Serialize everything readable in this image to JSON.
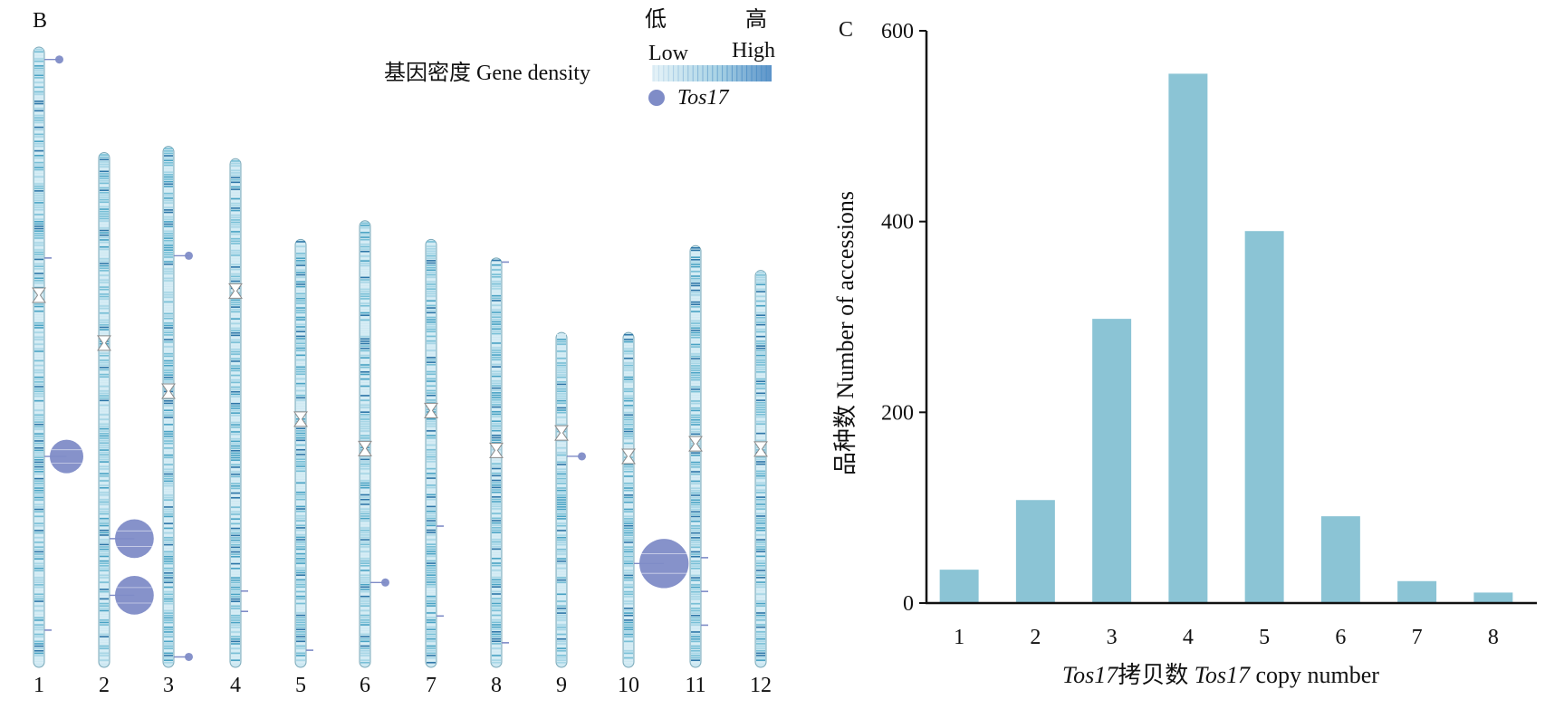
{
  "panel_b": {
    "letter": "B",
    "legend": {
      "density_label": "基因密度 Gene density",
      "low_cn": "低",
      "high_cn": "高",
      "low_en": "Low",
      "high_en": "High",
      "marker_label": "Tos17",
      "marker_color": "#7f8cc7"
    },
    "chromosomes": [
      {
        "label": "1",
        "length_rel": 1.0,
        "centromere_rel": 0.4,
        "markers": [
          {
            "pos_rel": 0.02,
            "copies": 1
          },
          {
            "pos_rel": 0.34,
            "copies": 0
          },
          {
            "pos_rel": 0.66,
            "copies": 5
          },
          {
            "pos_rel": 0.94,
            "copies": 0
          }
        ]
      },
      {
        "label": "2",
        "length_rel": 0.83,
        "centromere_rel": 0.37,
        "markers": [
          {
            "pos_rel": 0.75,
            "copies": 6
          },
          {
            "pos_rel": 0.86,
            "copies": 6
          }
        ]
      },
      {
        "label": "3",
        "length_rel": 0.84,
        "centromere_rel": 0.47,
        "markers": [
          {
            "pos_rel": 0.21,
            "copies": 1
          },
          {
            "pos_rel": 0.98,
            "copies": 1
          }
        ]
      },
      {
        "label": "4",
        "length_rel": 0.82,
        "centromere_rel": 0.26,
        "markers": [
          {
            "pos_rel": 0.85,
            "copies": 0
          },
          {
            "pos_rel": 0.89,
            "copies": 0
          }
        ]
      },
      {
        "label": "5",
        "length_rel": 0.69,
        "centromere_rel": 0.42,
        "markers": [
          {
            "pos_rel": 0.96,
            "copies": 0
          }
        ]
      },
      {
        "label": "6",
        "length_rel": 0.72,
        "centromere_rel": 0.51,
        "markers": [
          {
            "pos_rel": 0.81,
            "copies": 1
          }
        ]
      },
      {
        "label": "7",
        "length_rel": 0.69,
        "centromere_rel": 0.4,
        "markers": [
          {
            "pos_rel": 0.67,
            "copies": 0
          },
          {
            "pos_rel": 0.88,
            "copies": 0
          }
        ]
      },
      {
        "label": "8",
        "length_rel": 0.66,
        "centromere_rel": 0.47,
        "markers": [
          {
            "pos_rel": 0.01,
            "copies": 0
          },
          {
            "pos_rel": 0.94,
            "copies": 0
          }
        ]
      },
      {
        "label": "9",
        "length_rel": 0.54,
        "centromere_rel": 0.3,
        "markers": [
          {
            "pos_rel": 0.37,
            "copies": 1
          }
        ]
      },
      {
        "label": "10",
        "length_rel": 0.54,
        "centromere_rel": 0.37,
        "markers": [
          {
            "pos_rel": 0.69,
            "copies": 8
          }
        ]
      },
      {
        "label": "11",
        "length_rel": 0.68,
        "centromere_rel": 0.47,
        "markers": [
          {
            "pos_rel": 0.74,
            "copies": 0
          },
          {
            "pos_rel": 0.82,
            "copies": 0
          },
          {
            "pos_rel": 0.9,
            "copies": 0
          }
        ]
      },
      {
        "label": "12",
        "length_rel": 0.64,
        "centromere_rel": 0.45,
        "markers": []
      }
    ]
  },
  "panel_c": {
    "letter": "C",
    "colors": {
      "bar": "#8bc4d5",
      "axis": "#111111"
    }
  },
  "chart_data": {
    "type": "bar",
    "title": "",
    "xlabel_italic_part": "Tos17",
    "xlabel": "Tos17拷贝数 Tos17 copy number",
    "xlabel_parts": [
      "Tos17",
      "拷贝数 ",
      "Tos17",
      " copy number"
    ],
    "ylabel": "品种数 Number of accessions",
    "categories": [
      "1",
      "2",
      "3",
      "4",
      "5",
      "6",
      "7",
      "8"
    ],
    "values": [
      35,
      108,
      298,
      555,
      390,
      91,
      23,
      11
    ],
    "ylim": [
      0,
      600
    ],
    "yticks": [
      0,
      200,
      400,
      600
    ],
    "grid": false,
    "legend": "none"
  }
}
